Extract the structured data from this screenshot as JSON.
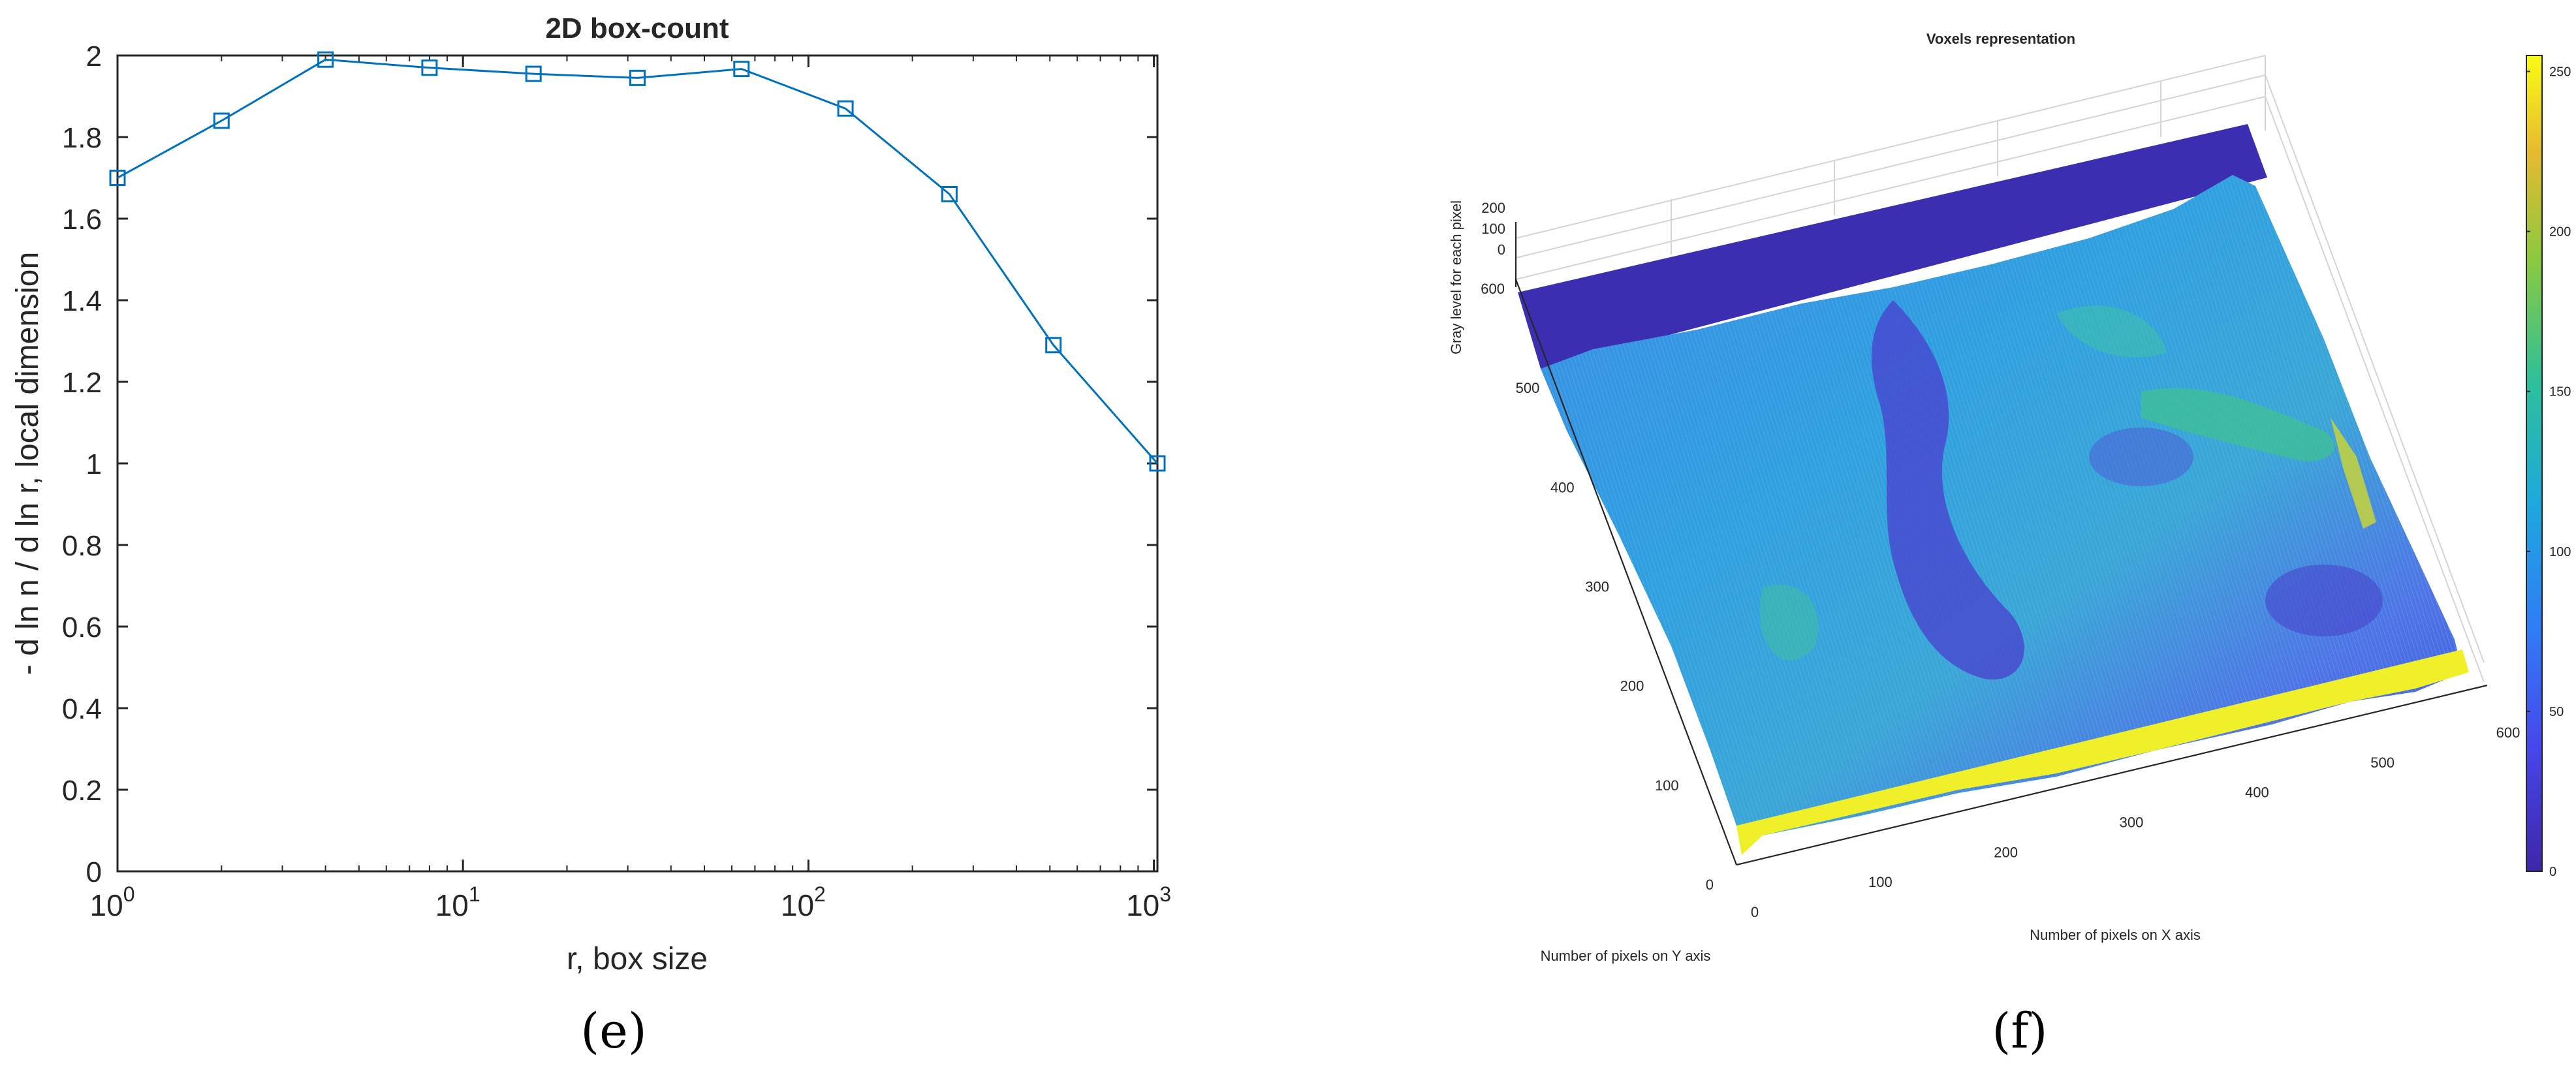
{
  "captions": {
    "e": "(e)",
    "f": "(f)"
  },
  "chart_data": [
    {
      "type": "line",
      "title": "2D box-count",
      "xlabel": "r, box size",
      "ylabel": "- d ln n / d ln r, local dimension",
      "xscale": "log",
      "xlim": [
        1,
        1024
      ],
      "ylim": [
        0,
        2
      ],
      "x_ticks": [
        {
          "value": 1,
          "base": "10",
          "exp": "0"
        },
        {
          "value": 10,
          "base": "10",
          "exp": "1"
        },
        {
          "value": 100,
          "base": "10",
          "exp": "2"
        },
        {
          "value": 1000,
          "base": "10",
          "exp": "3"
        }
      ],
      "y_ticks": [
        "0",
        "0.2",
        "0.4",
        "0.6",
        "0.8",
        "1",
        "1.2",
        "1.4",
        "1.6",
        "1.8",
        "2"
      ],
      "series": [
        {
          "marker": "square",
          "color": "#0072bd",
          "x": [
            1,
            2,
            4,
            8,
            16,
            32,
            64,
            128,
            256,
            512,
            1024
          ],
          "y": [
            1.7,
            1.84,
            1.99,
            1.97,
            1.955,
            1.945,
            1.967,
            1.87,
            1.66,
            1.29,
            1.0
          ]
        }
      ],
      "grid": false
    },
    {
      "type": "surface3d",
      "title": "Voxels representation",
      "xlabel": "Number of pixels on X axis",
      "ylabel": "Number of pixels on Y axis",
      "zlabel": "Gray level for each pixel",
      "x_ticks": [
        "0",
        "100",
        "200",
        "300",
        "400",
        "500",
        "600"
      ],
      "y_ticks": [
        "0",
        "100",
        "200",
        "300",
        "400",
        "500",
        "600"
      ],
      "z_ticks": [
        "0",
        "100",
        "200"
      ],
      "colorbar_ticks": [
        "0",
        "50",
        "100",
        "150",
        "200",
        "250"
      ],
      "colormap": "parula",
      "colors": {
        "low": "#3e26a8",
        "mid": "#2d9be6",
        "high": "#f9fb15"
      }
    }
  ]
}
